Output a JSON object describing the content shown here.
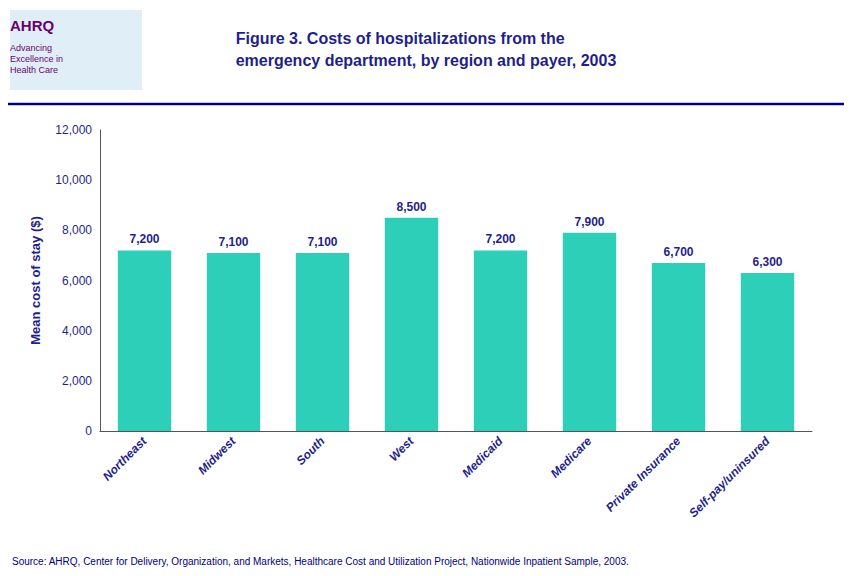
{
  "chart_data": {
    "type": "bar",
    "title": "Figure 3. Costs of hospitalizations from the\nemergency department, by region and payer, 2003",
    "categories": [
      "Northeast",
      "Midwest",
      "South",
      "West",
      "Medicaid",
      "Medicare",
      "Private Insurance",
      "Self-pay/uninsured"
    ],
    "values": [
      7200,
      7100,
      7100,
      8500,
      7200,
      7900,
      6700,
      6300
    ],
    "value_labels": [
      "7,200",
      "7,100",
      "7,100",
      "8,500",
      "7,200",
      "7,900",
      "6,700",
      "6,300"
    ],
    "data_labels": true,
    "color": "#2ECFB8",
    "ylabel": "Mean cost of stay ($)",
    "ylim": [
      0,
      12000
    ],
    "yticks": [
      0,
      {
        "value": 2000,
        "label": "2,000"
      },
      {
        "value": 4000,
        "label": "4,000"
      },
      {
        "value": 6000,
        "label": "6,000"
      },
      {
        "value": 8000,
        "label": "8,000"
      },
      {
        "value": 10000,
        "label": "10,000"
      },
      {
        "value": 12000,
        "label": "12,000"
      }
    ],
    "grid": false,
    "annotations": [
      "AHRQ",
      "Advancing\nExcellence in\nHealth Care",
      "Source: AHRQ, Center for Delivery, Organization, and Markets, Healthcare Cost and Utilization Project, Nationwide Inpatient Sample, 2003."
    ]
  }
}
